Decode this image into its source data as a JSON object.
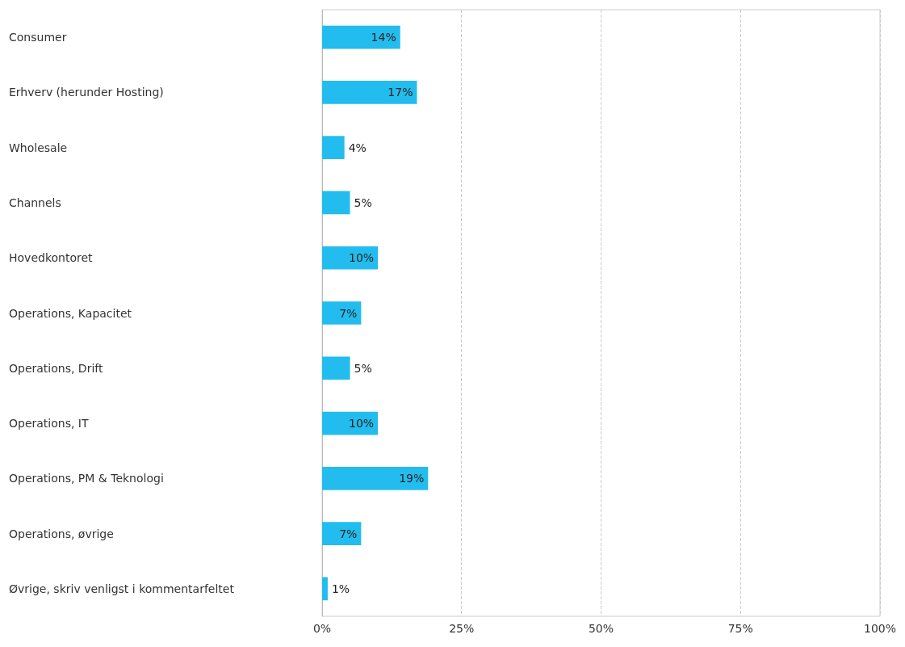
{
  "chart_data": {
    "type": "bar",
    "orientation": "horizontal",
    "categories": [
      "Consumer",
      "Erhverv (herunder Hosting)",
      "Wholesale",
      "Channels",
      "Hovedkontoret",
      "Operations, Kapacitet",
      "Operations, Drift",
      "Operations, IT",
      "Operations, PM & Teknologi",
      "Operations, øvrige",
      "Øvrige, skriv venligst i kommentarfeltet"
    ],
    "values": [
      14,
      17,
      4,
      5,
      10,
      7,
      5,
      10,
      19,
      7,
      1
    ],
    "value_labels": [
      "14%",
      "17%",
      "4%",
      "5%",
      "10%",
      "7%",
      "5%",
      "10%",
      "19%",
      "7%",
      "1%"
    ],
    "color": "#22bdee",
    "xlim": [
      0,
      100
    ],
    "xticks": [
      {
        "value": 0,
        "label": "0%"
      },
      {
        "value": 25,
        "label": "25%"
      },
      {
        "value": 50,
        "label": "50%"
      },
      {
        "value": 75,
        "label": "75%"
      },
      {
        "value": 100,
        "label": "100%"
      }
    ],
    "grid": "x"
  }
}
